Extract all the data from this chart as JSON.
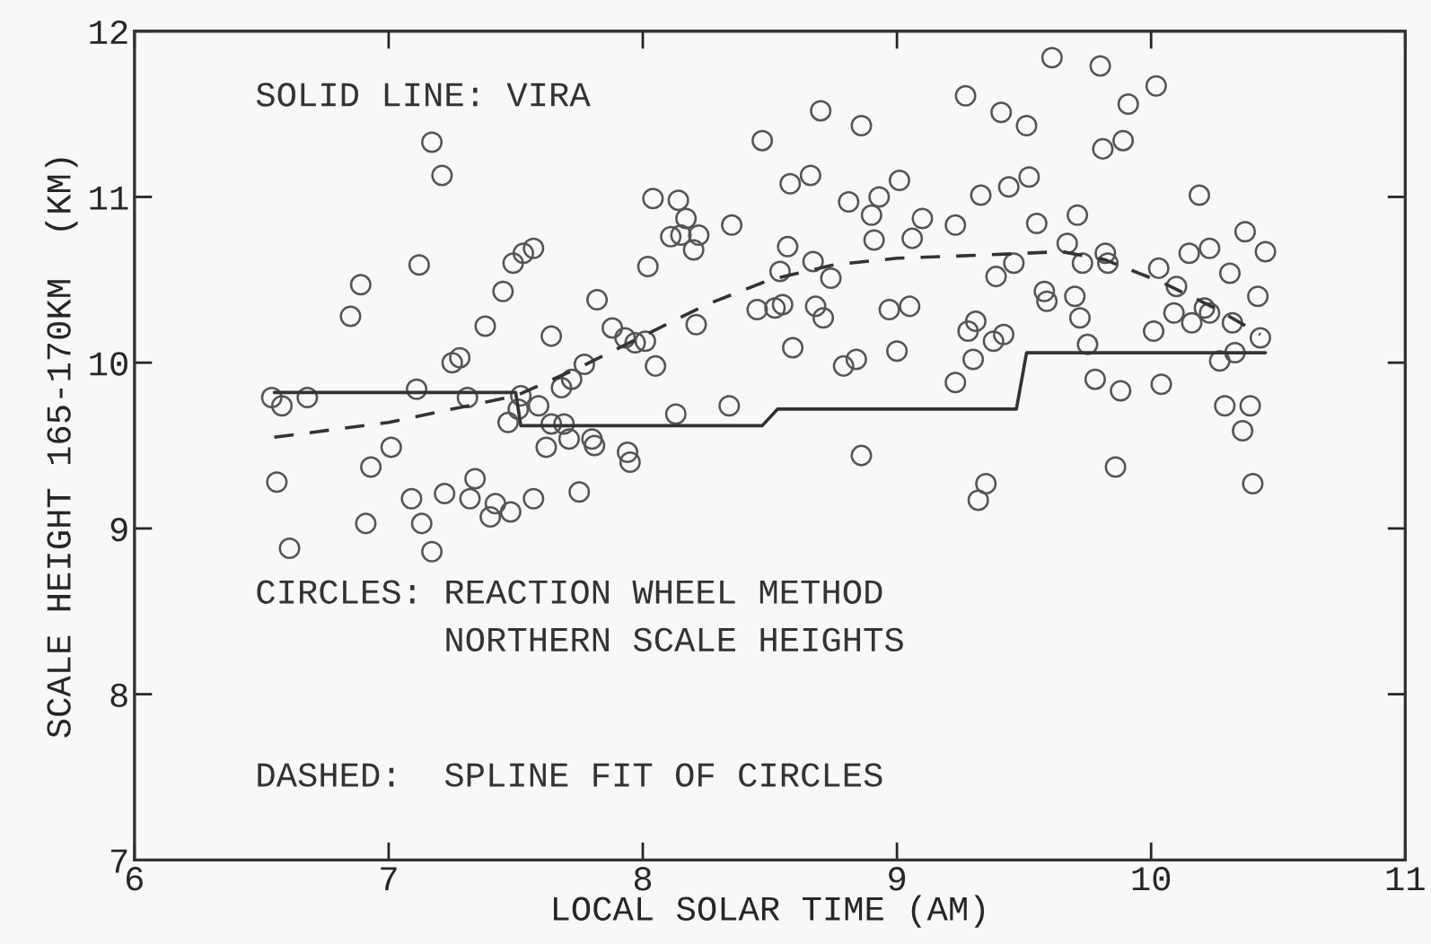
{
  "chart_data": {
    "type": "scatter",
    "xlabel": "LOCAL SOLAR TIME (AM)",
    "ylabel": "SCALE HEIGHT 165-170KM  (KM)",
    "annotations": [
      "SOLID LINE: VIRA",
      "CIRCLES: REACTION WHEEL METHOD\n         NORTHERN SCALE HEIGHTS",
      "DASHED:  SPLINE FIT OF CIRCLES"
    ],
    "xlim": [
      6,
      11
    ],
    "ylim": [
      7,
      12
    ],
    "xticks": [
      6,
      7,
      8,
      9,
      10,
      11
    ],
    "yticks": [
      7,
      8,
      9,
      10,
      11,
      12
    ],
    "grid": false,
    "series": [
      {
        "marker": "circle",
        "color": "#555555",
        "x": [
          6.54,
          6.58,
          6.68,
          6.56,
          6.61,
          6.85,
          6.89,
          6.91,
          6.93,
          7.01,
          7.09,
          7.11,
          7.12,
          7.13,
          7.17,
          7.17,
          7.21,
          7.22,
          7.25,
          7.28,
          7.31,
          7.32,
          7.34,
          7.38,
          7.42,
          7.4,
          7.45,
          7.48,
          7.47,
          7.49,
          7.53,
          7.57,
          7.52,
          7.51,
          7.57,
          7.59,
          7.64,
          7.62,
          7.64,
          7.68,
          7.72,
          7.77,
          7.69,
          7.71,
          7.8,
          7.81,
          7.82,
          7.88,
          7.93,
          7.97,
          8.01,
          8.02,
          8.05,
          7.94,
          7.95,
          7.75,
          8.04,
          8.14,
          8.17,
          8.11,
          8.15,
          8.22,
          8.2,
          8.21,
          8.13,
          8.34,
          8.35,
          8.47,
          8.45,
          8.52,
          8.55,
          8.54,
          8.57,
          8.59,
          8.58,
          8.66,
          8.67,
          8.7,
          8.74,
          8.68,
          8.71,
          8.79,
          8.84,
          8.86,
          8.81,
          8.9,
          8.93,
          8.91,
          9.01,
          9.0,
          8.97,
          9.05,
          9.06,
          9.1,
          8.86,
          9.23,
          9.27,
          9.33,
          9.28,
          9.31,
          9.3,
          9.23,
          9.35,
          9.32,
          9.61,
          9.8,
          10.02,
          9.91,
          9.41,
          9.51,
          9.81,
          9.89,
          9.44,
          9.52,
          10.19,
          9.55,
          9.71,
          10.37,
          10.45,
          10.15,
          10.23,
          9.67,
          9.82,
          9.73,
          9.83,
          9.46,
          9.39,
          10.03,
          10.31,
          10.1,
          9.58,
          9.59,
          9.7,
          10.42,
          10.21,
          10.09,
          10.16,
          10.23,
          9.72,
          10.32,
          10.43,
          10.01,
          9.42,
          9.38,
          9.75,
          10.33,
          10.27,
          9.78,
          9.88,
          10.04,
          10.29,
          10.39,
          10.36,
          9.86,
          10.4
        ],
        "values": [
          9.79,
          9.74,
          9.79,
          9.28,
          8.88,
          10.28,
          10.47,
          9.03,
          9.37,
          9.49,
          9.18,
          9.84,
          10.59,
          9.03,
          11.33,
          8.86,
          11.13,
          9.21,
          10.0,
          10.03,
          9.79,
          9.18,
          9.3,
          10.22,
          9.15,
          9.07,
          10.43,
          9.1,
          9.64,
          10.6,
          10.66,
          10.69,
          9.8,
          9.72,
          9.18,
          9.74,
          10.16,
          9.49,
          9.63,
          9.85,
          9.9,
          9.99,
          9.63,
          9.54,
          9.54,
          9.5,
          10.38,
          10.21,
          10.15,
          10.12,
          10.13,
          10.58,
          9.98,
          9.46,
          9.4,
          9.22,
          10.99,
          10.98,
          10.87,
          10.76,
          10.77,
          10.77,
          10.68,
          10.23,
          9.69,
          9.74,
          10.83,
          11.34,
          10.32,
          10.33,
          10.35,
          10.55,
          10.7,
          10.09,
          11.08,
          11.13,
          10.61,
          11.52,
          10.51,
          10.34,
          10.27,
          9.98,
          10.02,
          11.43,
          10.97,
          10.89,
          11.0,
          10.74,
          11.1,
          10.07,
          10.32,
          10.34,
          10.75,
          10.87,
          9.44,
          10.83,
          11.61,
          11.01,
          10.19,
          10.25,
          10.02,
          9.88,
          9.27,
          9.17,
          11.84,
          11.79,
          11.67,
          11.56,
          11.51,
          11.43,
          11.29,
          11.34,
          11.06,
          11.12,
          11.01,
          10.84,
          10.89,
          10.79,
          10.67,
          10.66,
          10.69,
          10.72,
          10.66,
          10.6,
          10.6,
          10.6,
          10.52,
          10.57,
          10.54,
          10.46,
          10.43,
          10.37,
          10.4,
          10.4,
          10.33,
          10.3,
          10.24,
          10.3,
          10.27,
          10.24,
          10.15,
          10.19,
          10.17,
          10.13,
          10.11,
          10.06,
          10.01,
          9.9,
          9.83,
          9.87,
          9.74,
          9.74,
          9.59,
          9.37,
          9.27
        ]
      },
      {
        "type": "line",
        "line_style": "solid",
        "color": "#333333",
        "x": [
          6.55,
          7.5,
          7.52,
          8.47,
          8.53,
          9.47,
          9.51,
          10.45
        ],
        "values": [
          9.82,
          9.82,
          9.62,
          9.62,
          9.72,
          9.72,
          10.06,
          10.06
        ]
      },
      {
        "type": "line",
        "line_style": "dashed",
        "color": "#333333",
        "x": [
          6.55,
          7.0,
          7.5,
          7.75,
          8.0,
          8.25,
          8.5,
          8.75,
          9.0,
          9.35,
          9.65,
          9.82,
          10.05,
          10.25,
          10.43
        ],
        "values": [
          9.55,
          9.64,
          9.8,
          9.97,
          10.16,
          10.35,
          10.5,
          10.59,
          10.63,
          10.65,
          10.67,
          10.62,
          10.48,
          10.33,
          10.17
        ]
      }
    ]
  }
}
